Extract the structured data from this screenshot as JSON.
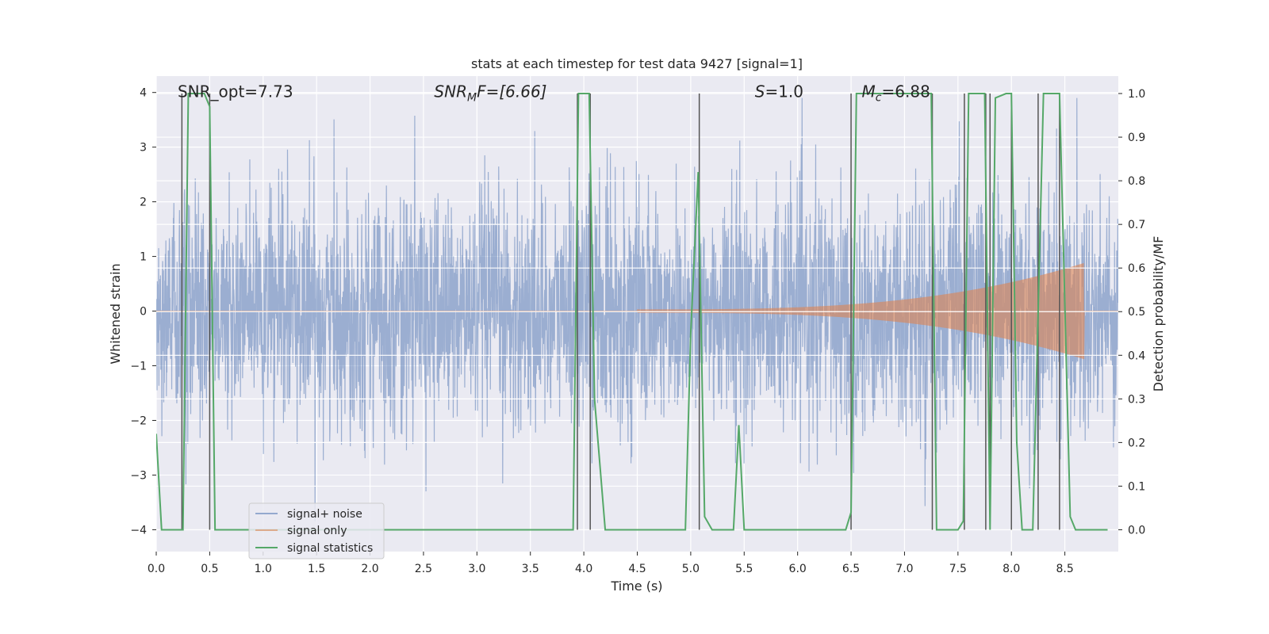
{
  "chart_data": {
    "type": "line",
    "title": "stats at each timestep for test data 9427 [signal=1]",
    "xlabel": "Time (s)",
    "ylabel": "Whitened strain",
    "y2label": "Detection probability/MF",
    "xlim": [
      0,
      9.0
    ],
    "ylim": [
      -4.4,
      4.3
    ],
    "y2lim": [
      -0.05,
      1.04
    ],
    "xticks": [
      0.0,
      0.5,
      1.0,
      1.5,
      2.0,
      2.5,
      3.0,
      3.5,
      4.0,
      4.5,
      5.0,
      5.5,
      6.0,
      6.5,
      7.0,
      7.5,
      8.0,
      8.5
    ],
    "xtick_labels": [
      "0.0",
      "0.5",
      "1.0",
      "1.5",
      "2.0",
      "2.5",
      "3.0",
      "3.5",
      "4.0",
      "4.5",
      "5.0",
      "5.5",
      "6.0",
      "6.5",
      "7.0",
      "7.5",
      "8.0",
      "8.5"
    ],
    "yticks": [
      -4,
      -3,
      -2,
      -1,
      0,
      1,
      2,
      3,
      4
    ],
    "ytick_labels": [
      "−4",
      "−3",
      "−2",
      "−1",
      "0",
      "1",
      "2",
      "3",
      "4"
    ],
    "y2ticks": [
      0.0,
      0.1,
      0.2,
      0.3,
      0.4,
      0.5,
      0.6,
      0.7,
      0.8,
      0.9,
      1.0
    ],
    "y2tick_labels": [
      "0.0",
      "0.1",
      "0.2",
      "0.3",
      "0.4",
      "0.5",
      "0.6",
      "0.7",
      "0.8",
      "0.9",
      "1.0"
    ],
    "grid": true,
    "annotations": {
      "snr_opt": {
        "text": "SNR_opt=7.73",
        "x": 0.2,
        "y": 4.0
      },
      "snr_mf_base": "SNR",
      "snr_mf_sub": "M",
      "snr_mf_rest": "F=[6.66]",
      "snr_mf_pos": {
        "x": 2.6,
        "y": 4.0
      },
      "s_italic": "S",
      "s_rest": "=1.0",
      "s_pos": {
        "x": 5.6,
        "y": 4.0
      },
      "mc_base": "M",
      "mc_sub": "c",
      "mc_rest": "=6.88",
      "mc_pos": {
        "x": 6.6,
        "y": 4.0
      }
    },
    "legend": {
      "placement": "lower-left",
      "entries": [
        "signal+ noise",
        "signal only",
        "signal statistics"
      ]
    },
    "series": [
      {
        "name": "signal+ noise",
        "color": "#4c72b0",
        "style": "noise",
        "amplitude_std": 1.05,
        "points": 3600
      },
      {
        "name": "signal only",
        "color": "#dd8452",
        "style": "chirp",
        "start": 4.5,
        "end": 8.68,
        "peak_amplitude": 0.85
      },
      {
        "name": "signal statistics",
        "color": "#55a868",
        "axis": "right",
        "x": [
          0.0,
          0.05,
          0.25,
          0.3,
          0.45,
          0.5,
          0.55,
          3.9,
          3.95,
          4.05,
          4.1,
          4.2,
          4.95,
          5.0,
          5.07,
          5.13,
          5.2,
          5.4,
          5.45,
          5.5,
          5.55,
          6.45,
          6.5,
          6.55,
          7.25,
          7.3,
          7.5,
          7.55,
          7.6,
          7.75,
          7.8,
          7.85,
          7.95,
          8.0,
          8.05,
          8.1,
          8.2,
          8.3,
          8.45,
          8.55,
          8.6,
          8.9
        ],
        "y": [
          0.22,
          0.0,
          0.0,
          1.0,
          1.0,
          0.97,
          0.0,
          0.0,
          1.0,
          1.0,
          0.3,
          0.0,
          0.0,
          0.45,
          0.82,
          0.03,
          0.0,
          0.0,
          0.24,
          0.0,
          0.0,
          0.0,
          0.04,
          1.0,
          1.0,
          0.0,
          0.0,
          0.02,
          1.0,
          1.0,
          0.0,
          0.99,
          1.0,
          1.0,
          0.2,
          0.0,
          0.0,
          1.0,
          1.0,
          0.03,
          0.0,
          0.0
        ]
      }
    ],
    "event_lines": {
      "color": "#555555",
      "x": [
        0.24,
        0.5,
        3.94,
        4.06,
        5.08,
        6.5,
        7.26,
        7.56,
        7.76,
        7.8,
        8.0,
        8.25,
        8.45
      ]
    }
  }
}
